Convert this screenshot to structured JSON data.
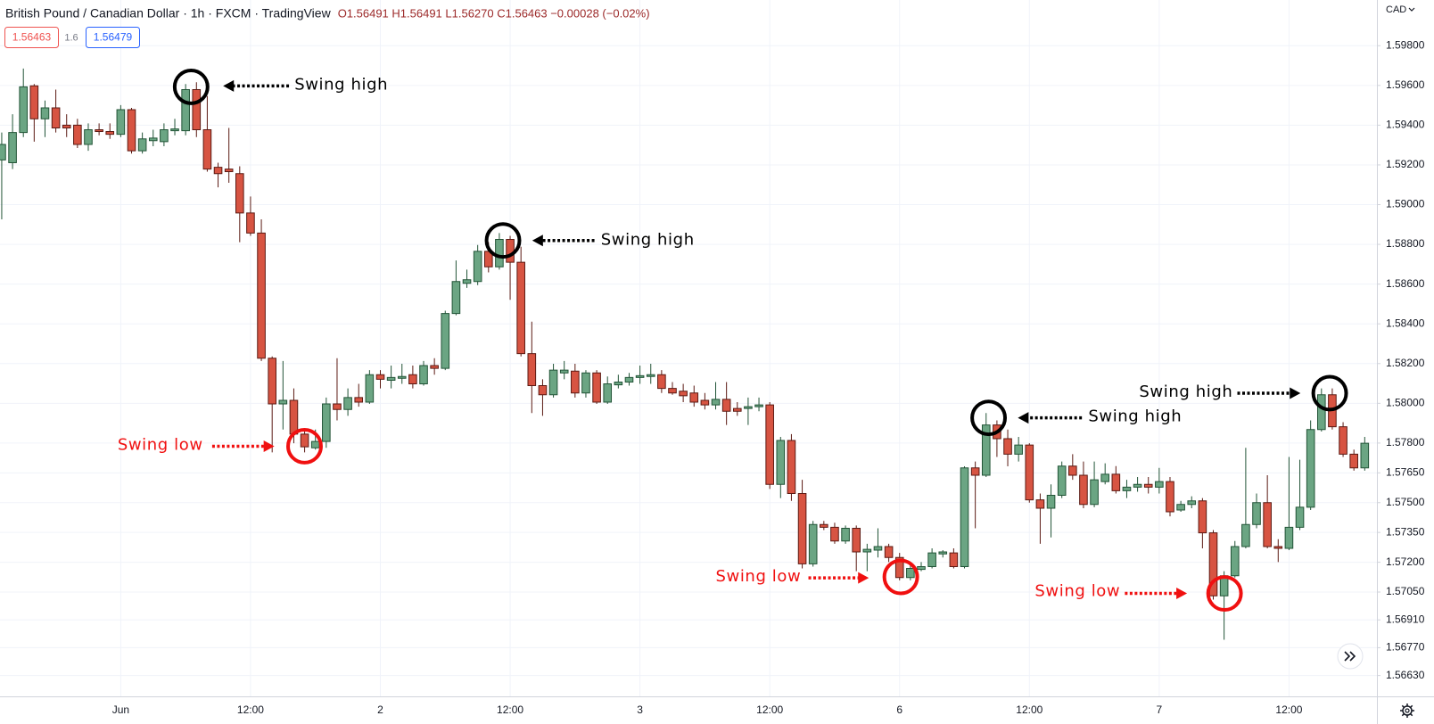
{
  "chart_data": {
    "type": "candlestick",
    "title": "British Pound / Canadian Dollar · 1h · FXCM · TradingView",
    "quote": "O1.56491 H1.56491 L1.56270 C1.56463 −0.00028 (−0.02%)",
    "sell_price": "1.56463",
    "spread": "1.6",
    "buy_price": "1.56479",
    "currency": "CAD",
    "up_color": "#6ba583",
    "down_color": "#d75442",
    "up_border": "#225437",
    "down_border": "#5b1a13",
    "grid": true,
    "categories": [
      null,
      null,
      null,
      null,
      null,
      null,
      null,
      null,
      null,
      null,
      null,
      "Jun",
      null,
      null,
      null,
      null,
      null,
      null,
      null,
      null,
      null,
      null,
      null,
      "12:00",
      null,
      null,
      null,
      null,
      null,
      null,
      null,
      null,
      null,
      null,
      null,
      "2",
      null,
      null,
      null,
      null,
      null,
      null,
      null,
      null,
      null,
      null,
      null,
      "12:00",
      null,
      null,
      null,
      null,
      null,
      null,
      null,
      null,
      null,
      null,
      null,
      "3",
      null,
      null,
      null,
      null,
      null,
      null,
      null,
      null,
      null,
      null,
      null,
      "12:00",
      null,
      null,
      null,
      null,
      null,
      null,
      null,
      null,
      null,
      null,
      null,
      "6",
      null,
      null,
      null,
      null,
      null,
      null,
      null,
      null,
      null,
      null,
      null,
      "12:00",
      null,
      null,
      null,
      null,
      null,
      null,
      null,
      null,
      null,
      null,
      null,
      "7",
      null,
      null,
      null,
      null,
      null,
      null,
      null,
      null,
      null,
      null,
      null,
      "12:00",
      null,
      null,
      null,
      null,
      null,
      null,
      null
    ],
    "open": [
      1.59225,
      1.59211,
      1.59363,
      1.59598,
      1.59432,
      1.59487,
      1.594,
      1.594,
      1.59303,
      1.59377,
      1.59368,
      1.59354,
      1.59478,
      1.59271,
      1.59322,
      1.59317,
      1.59372,
      1.59372,
      1.59579,
      1.59377,
      1.59188,
      1.59179,
      1.59156,
      1.58958,
      1.58857,
      1.58227,
      1.57997,
      1.58015,
      1.57845,
      1.57776,
      1.57808,
      1.57997,
      1.57969,
      1.58029,
      1.58006,
      1.58144,
      1.58116,
      1.58126,
      1.58144,
      1.58098,
      1.5819,
      1.58176,
      1.58452,
      1.58604,
      1.58613,
      1.58765,
      1.58687,
      1.58825,
      1.5871,
      1.5825,
      1.58089,
      1.58043,
      1.58153,
      1.58162,
      1.58052,
      1.58153,
      1.58006,
      1.58093,
      1.58107,
      1.5813,
      1.58135,
      1.58144,
      1.58075,
      1.58061,
      1.58052,
      1.58015,
      1.57992,
      1.5802,
      1.57974,
      1.57974,
      1.57983,
      1.57992,
      1.57592,
      1.57813,
      1.57546,
      1.57192,
      1.5739,
      1.57376,
      1.57307,
      1.57371,
      1.57252,
      1.57261,
      1.57279,
      1.57224,
      1.57123,
      1.57164,
      1.57178,
      1.57242,
      1.57247,
      1.57178,
      1.57675,
      1.57638,
      1.57891,
      1.57822,
      1.57744,
      1.5779,
      1.57514,
      1.57472,
      1.57537,
      1.57684,
      1.57638,
      1.57491,
      1.57606,
      1.57643,
      1.5756,
      1.57578,
      1.57592,
      1.57578,
      1.57606,
      1.57463,
      1.57491,
      1.57509,
      1.57348,
      1.57031,
      1.57132,
      1.57279,
      1.5739,
      1.575,
      1.57279,
      1.5727,
      1.57376,
      1.57477,
      1.57868,
      1.58043,
      1.57882,
      1.57744,
      1.57675
    ],
    "high": [
      1.59363,
      1.59455,
      1.59685,
      1.59607,
      1.59524,
      1.59579,
      1.59455,
      1.59432,
      1.59409,
      1.59409,
      1.59409,
      1.59501,
      1.59487,
      1.59363,
      1.59377,
      1.59409,
      1.59432,
      1.59607,
      1.59616,
      1.59547,
      1.59211,
      1.59386,
      1.59193,
      1.59041,
      1.58926,
      1.58236,
      1.58213,
      1.58075,
      1.57868,
      1.57868,
      1.58029,
      1.58227,
      1.58075,
      1.58098,
      1.58167,
      1.58167,
      1.5819,
      1.58199,
      1.5819,
      1.58213,
      1.58227,
      1.58466,
      1.58719,
      1.58673,
      1.58797,
      1.58811,
      1.58857,
      1.58843,
      1.58788,
      1.58411,
      1.58121,
      1.58199,
      1.58213,
      1.58199,
      1.58167,
      1.58167,
      1.58135,
      1.58144,
      1.58153,
      1.5819,
      1.58199,
      1.58167,
      1.58107,
      1.58098,
      1.58089,
      1.58052,
      1.58107,
      1.58107,
      1.58006,
      1.58029,
      1.58029,
      1.58006,
      1.57831,
      1.57845,
      1.57615,
      1.57408,
      1.57408,
      1.57399,
      1.57385,
      1.57385,
      1.57293,
      1.57371,
      1.57293,
      1.57247,
      1.57201,
      1.57201,
      1.5727,
      1.57261,
      1.5727,
      1.57683,
      1.57707,
      1.57951,
      1.57914,
      1.57868,
      1.57831,
      1.57799,
      1.57546,
      1.57592,
      1.57707,
      1.57744,
      1.57707,
      1.57707,
      1.57698,
      1.57684,
      1.57615,
      1.57629,
      1.57629,
      1.57675,
      1.57629,
      1.57509,
      1.57532,
      1.57523,
      1.57362,
      1.57155,
      1.57307,
      1.57776,
      1.57546,
      1.57638,
      1.57316,
      1.5773,
      1.57716,
      1.57914,
      1.58075,
      1.58075,
      1.57905,
      1.57767,
      1.57831
    ],
    "low": [
      1.58926,
      1.59179,
      1.5934,
      1.59317,
      1.5934,
      1.59363,
      1.5934,
      1.59285,
      1.59271,
      1.59349,
      1.59331,
      1.5934,
      1.59257,
      1.59257,
      1.59294,
      1.59294,
      1.59349,
      1.59349,
      1.5934,
      1.59166,
      1.59087,
      1.5911,
      1.58811,
      1.58843,
      1.58213,
      1.57753,
      1.57868,
      1.57799,
      1.57753,
      1.57767,
      1.57776,
      1.57914,
      1.57937,
      1.57983,
      1.57997,
      1.58075,
      1.58075,
      1.58098,
      1.58075,
      1.58089,
      1.58144,
      1.58167,
      1.58443,
      1.58581,
      1.58595,
      1.58659,
      1.58673,
      1.58521,
      1.58236,
      1.57951,
      1.57937,
      1.58029,
      1.58121,
      1.58029,
      1.58029,
      1.57997,
      1.57997,
      1.58075,
      1.58089,
      1.58098,
      1.58098,
      1.58052,
      1.58043,
      1.58006,
      1.57983,
      1.57969,
      1.57969,
      1.57891,
      1.57937,
      1.57891,
      1.5796,
      1.57569,
      1.57523,
      1.57509,
      1.57169,
      1.57178,
      1.57362,
      1.57293,
      1.57293,
      1.57155,
      1.57155,
      1.57224,
      1.57201,
      1.57109,
      1.57109,
      1.57155,
      1.57169,
      1.57224,
      1.57169,
      1.57169,
      1.57371,
      1.57629,
      1.5773,
      1.57683,
      1.57707,
      1.575,
      1.57293,
      1.57325,
      1.57523,
      1.57615,
      1.57472,
      1.57477,
      1.57592,
      1.57546,
      1.57523,
      1.57555,
      1.57546,
      1.57546,
      1.57431,
      1.57454,
      1.57472,
      1.5727,
      1.57012,
      1.5681,
      1.57123,
      1.5727,
      1.57371,
      1.5727,
      1.57201,
      1.57261,
      1.57362,
      1.57463,
      1.57858,
      1.57868,
      1.5773,
      1.57661,
      1.57661
    ],
    "close": [
      1.59303,
      1.59363,
      1.59593,
      1.59432,
      1.59487,
      1.59386,
      1.59386,
      1.59303,
      1.59377,
      1.59368,
      1.59354,
      1.59478,
      1.59271,
      1.59331,
      1.59335,
      1.59377,
      1.59381,
      1.59579,
      1.59377,
      1.59179,
      1.59156,
      1.59166,
      1.58958,
      1.58857,
      1.58227,
      1.57997,
      1.58015,
      1.57845,
      1.57781,
      1.57808,
      1.57997,
      1.57969,
      1.58029,
      1.58006,
      1.58144,
      1.58121,
      1.5813,
      1.58135,
      1.58098,
      1.5819,
      1.58176,
      1.58452,
      1.58613,
      1.58622,
      1.58765,
      1.58687,
      1.58825,
      1.5871,
      1.5825,
      1.58089,
      1.58043,
      1.58167,
      1.58167,
      1.58052,
      1.58153,
      1.58006,
      1.58098,
      1.58107,
      1.5813,
      1.58139,
      1.58144,
      1.58075,
      1.58052,
      1.58038,
      1.58006,
      1.57992,
      1.5802,
      1.5796,
      1.5796,
      1.57983,
      1.57992,
      1.57592,
      1.57813,
      1.57546,
      1.57192,
      1.5739,
      1.57376,
      1.57307,
      1.57371,
      1.57252,
      1.57265,
      1.57279,
      1.57224,
      1.57123,
      1.57169,
      1.57178,
      1.57247,
      1.57252,
      1.57178,
      1.57675,
      1.57638,
      1.57891,
      1.57822,
      1.57744,
      1.5779,
      1.57514,
      1.57472,
      1.57537,
      1.57684,
      1.57638,
      1.57491,
      1.57615,
      1.57643,
      1.5756,
      1.57578,
      1.57592,
      1.57578,
      1.57606,
      1.57454,
      1.57491,
      1.57509,
      1.57348,
      1.57031,
      1.57132,
      1.57279,
      1.5739,
      1.575,
      1.57279,
      1.5727,
      1.57376,
      1.57477,
      1.57868,
      1.58043,
      1.57882,
      1.57744,
      1.57675,
      1.57799
    ],
    "ylim": [
      1.56525,
      1.6003
    ],
    "yticks": [
      {
        "value": 1.598,
        "label": "1.59800"
      },
      {
        "value": 1.596,
        "label": "1.59600"
      },
      {
        "value": 1.594,
        "label": "1.59400"
      },
      {
        "value": 1.592,
        "label": "1.59200"
      },
      {
        "value": 1.59,
        "label": "1.59000"
      },
      {
        "value": 1.588,
        "label": "1.58800"
      },
      {
        "value": 1.586,
        "label": "1.58600"
      },
      {
        "value": 1.584,
        "label": "1.58400"
      },
      {
        "value": 1.582,
        "label": "1.58200"
      },
      {
        "value": 1.58,
        "label": "1.58000"
      },
      {
        "value": 1.578,
        "label": "1.57800"
      },
      {
        "value": 1.5765,
        "label": "1.57650"
      },
      {
        "value": 1.575,
        "label": "1.57500"
      },
      {
        "value": 1.5735,
        "label": "1.57350"
      },
      {
        "value": 1.572,
        "label": "1.57200"
      },
      {
        "value": 1.5705,
        "label": "1.57050"
      },
      {
        "value": 1.5691,
        "label": "1.56910"
      },
      {
        "value": 1.5677,
        "label": "1.56770"
      },
      {
        "value": 1.5663,
        "label": "1.56630"
      }
    ],
    "annotations": [
      {
        "text": "Swing high",
        "color": "#000000"
      },
      {
        "text": "Swing high",
        "color": "#000000"
      },
      {
        "text": "Swing low",
        "color": "#f01010"
      },
      {
        "text": "Swing low",
        "color": "#f01010"
      },
      {
        "text": "Swing high",
        "color": "#000000"
      },
      {
        "text": "Swing low",
        "color": "#f01010"
      },
      {
        "text": "Swing high",
        "color": "#000000"
      }
    ]
  }
}
